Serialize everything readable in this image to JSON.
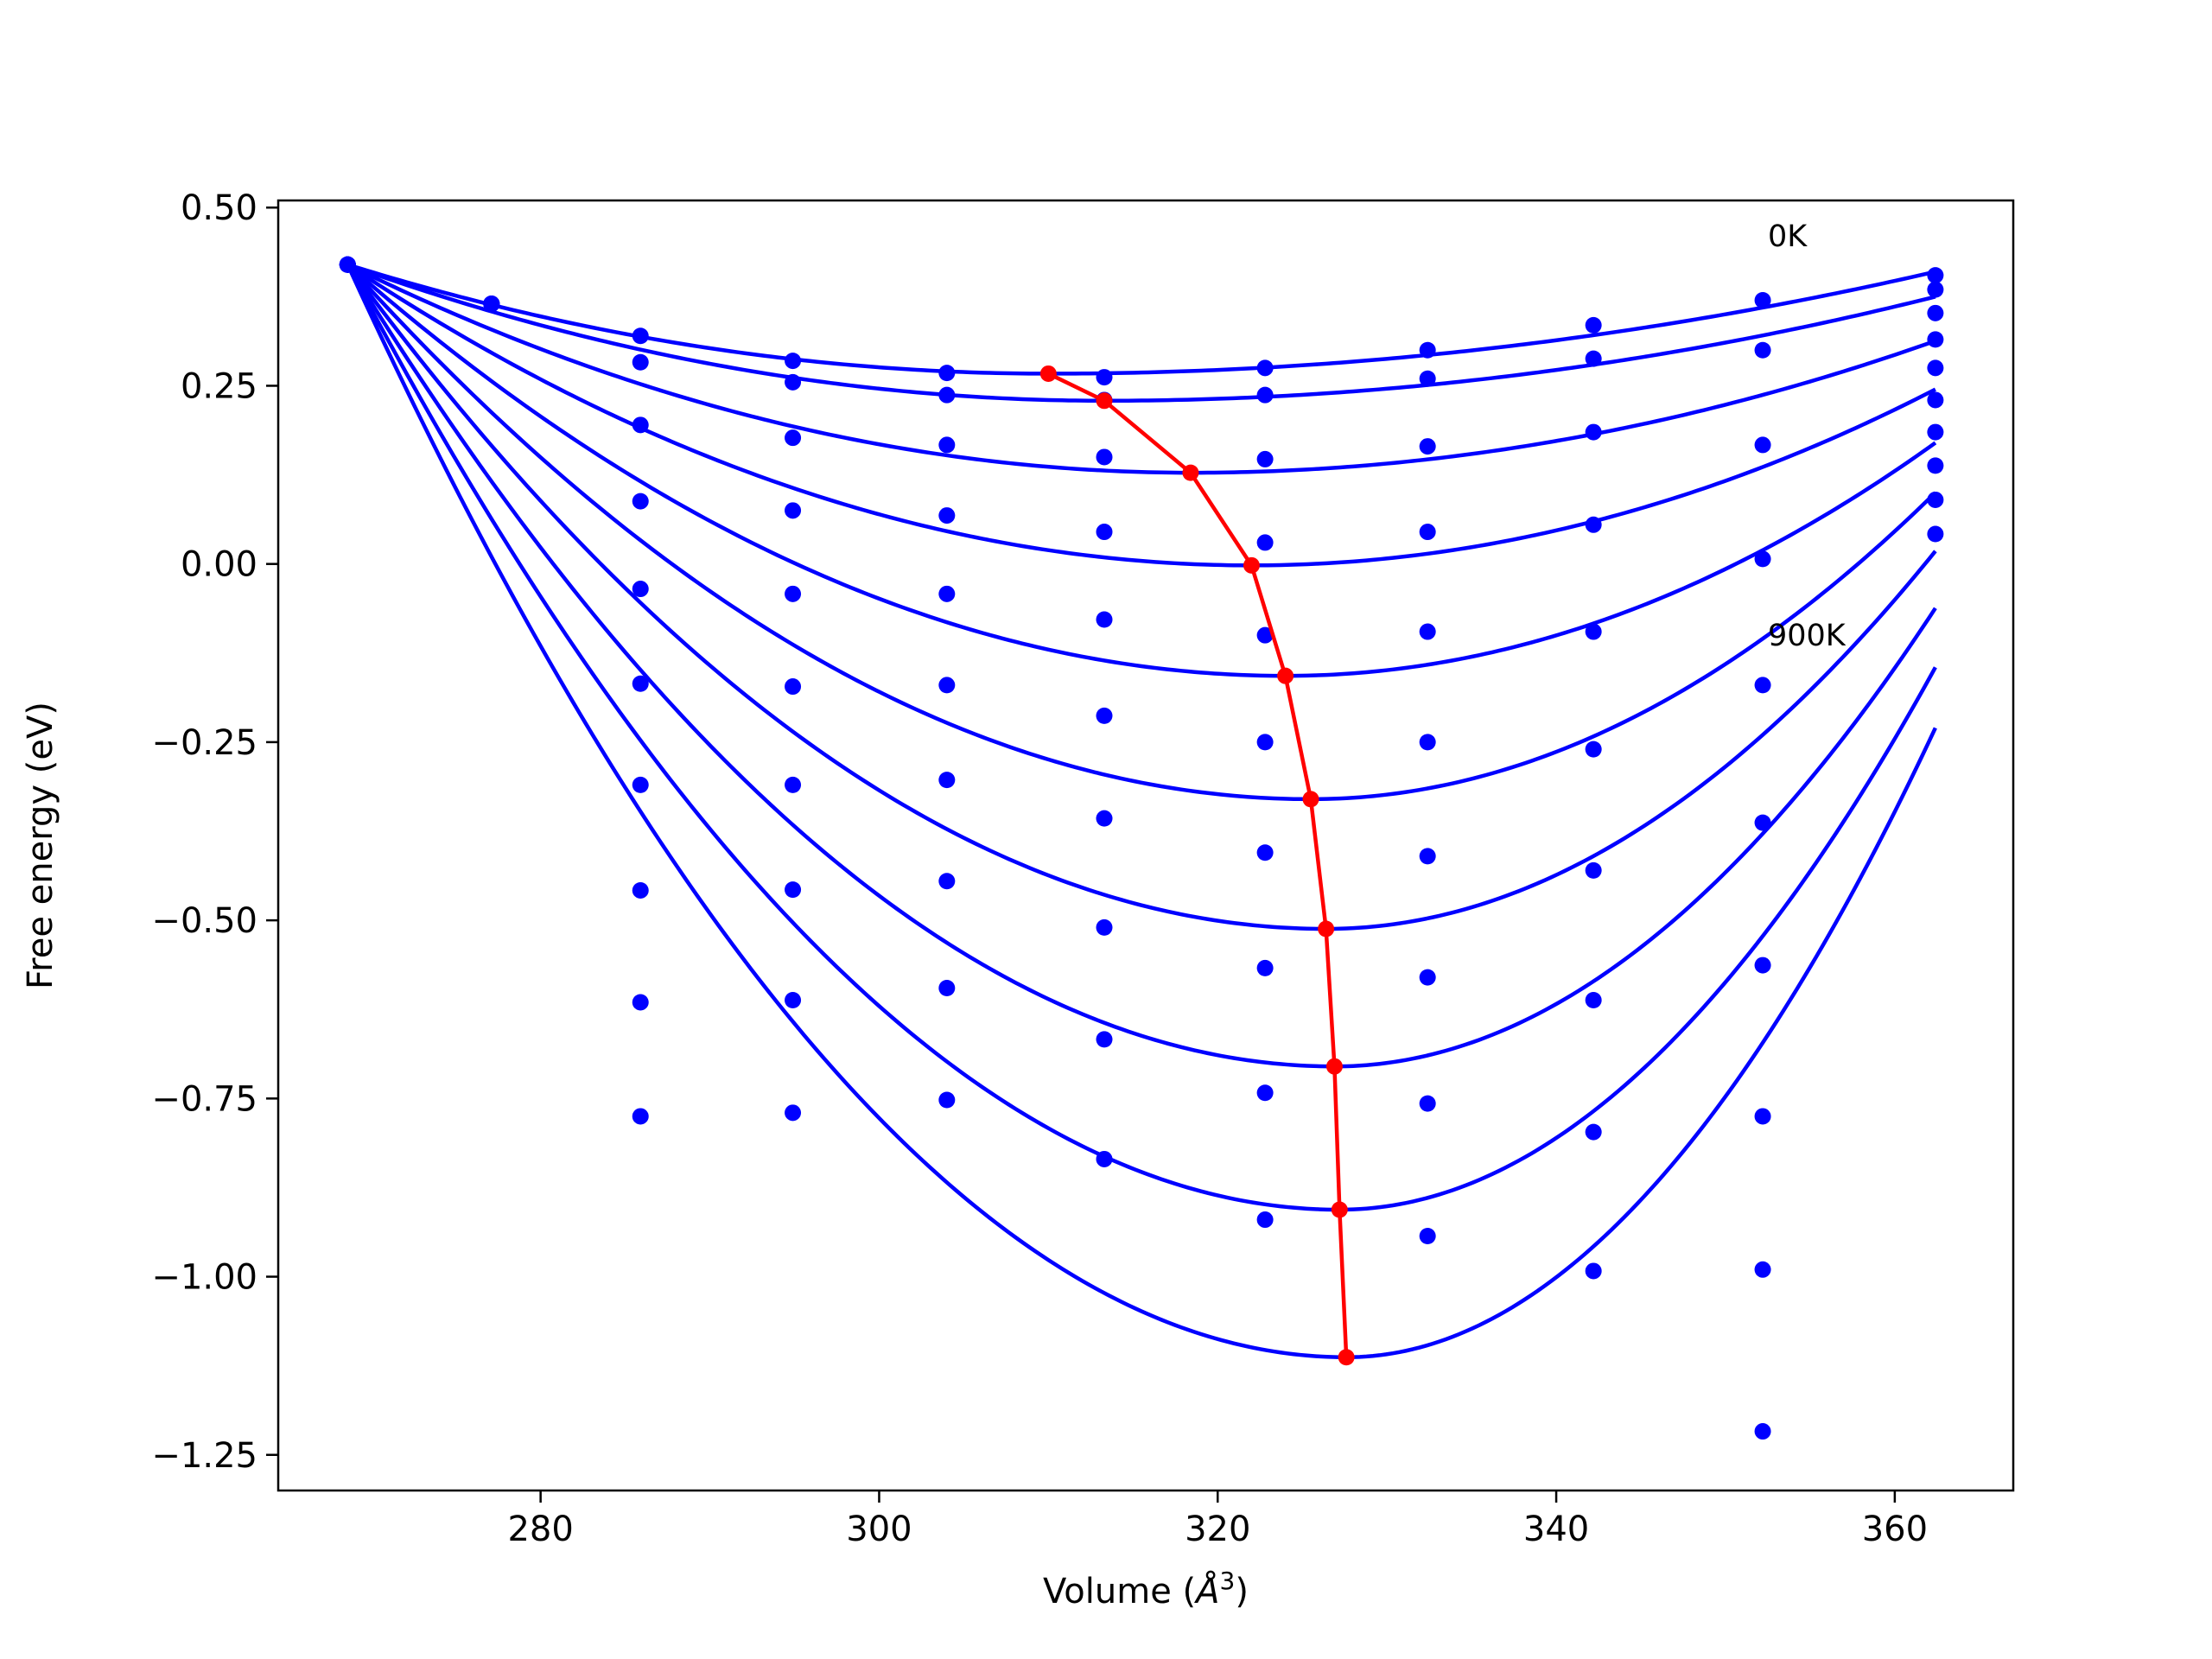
{
  "chart_data": {
    "type": "scatter",
    "title": "",
    "xlabel_main": "Volume (",
    "xlabel_symbol": "Å",
    "xlabel_exponent": "3",
    "xlabel_close": ")",
    "ylabel": "Free energy (eV)",
    "xlim": [
      264.5,
      367
    ],
    "ylim": [
      -1.3,
      0.51
    ],
    "xticks": [
      280,
      300,
      320,
      340,
      360
    ],
    "xtick_labels": [
      "280",
      "300",
      "320",
      "340",
      "360"
    ],
    "yticks": [
      0.5,
      0.25,
      0.0,
      -0.25,
      -0.5,
      -0.75,
      -1.0,
      -1.25
    ],
    "ytick_labels": [
      "0.50",
      "0.25",
      "0.00",
      "−0.25",
      "−0.50",
      "−0.75",
      "−1.00",
      "−1.25"
    ],
    "annotations": [
      {
        "text": "0K",
        "x": 352.5,
        "y": 0.46
      },
      {
        "text": "900K",
        "x": 352.5,
        "y": -0.1
      }
    ],
    "colors": {
      "points": "#0000ff",
      "fit_curves": "#0000ff",
      "minimum_path": "#ff0000"
    },
    "x_data": [
      268.6,
      277.1,
      285.9,
      294.9,
      304.0,
      313.3,
      322.8,
      332.4,
      342.2,
      352.2,
      362.4
    ],
    "point_series": [
      {
        "y": [
          0.42,
          0.365,
          0.32,
          0.285,
          0.268,
          0.262,
          0.275,
          0.3,
          0.335,
          0.37,
          0.405
        ]
      },
      {
        "y": [
          0.42,
          0.365,
          0.283,
          0.255,
          0.237,
          0.23,
          0.237,
          0.26,
          0.288,
          0.3,
          0.385
        ]
      },
      {
        "y": [
          0.42,
          0.365,
          0.195,
          0.177,
          0.167,
          0.15,
          0.147,
          0.165,
          0.185,
          0.167,
          0.352
        ]
      },
      {
        "y": [
          0.42,
          0.365,
          0.088,
          0.075,
          0.068,
          0.045,
          0.03,
          0.045,
          0.055,
          0.007,
          0.315
        ]
      },
      {
        "y": [
          0.42,
          0.365,
          -0.035,
          -0.042,
          -0.042,
          -0.078,
          -0.1,
          -0.095,
          -0.095,
          -0.17,
          0.275
        ]
      },
      {
        "y": [
          0.42,
          0.365,
          -0.168,
          -0.172,
          -0.17,
          -0.213,
          -0.25,
          -0.25,
          -0.26,
          -0.363,
          0.23
        ]
      },
      {
        "y": [
          0.42,
          0.365,
          -0.31,
          -0.31,
          -0.303,
          -0.357,
          -0.405,
          -0.41,
          -0.43,
          -0.563,
          0.185
        ]
      },
      {
        "y": [
          0.42,
          0.365,
          -0.458,
          -0.457,
          -0.445,
          -0.51,
          -0.567,
          -0.58,
          -0.612,
          -0.775,
          0.138
        ]
      },
      {
        "y": [
          0.42,
          0.365,
          -0.615,
          -0.612,
          -0.595,
          -0.667,
          -0.742,
          -0.757,
          -0.797,
          -0.99,
          0.09
        ]
      },
      {
        "y": [
          0.42,
          0.365,
          -0.775,
          -0.77,
          -0.752,
          -0.835,
          -0.92,
          -0.943,
          -0.992,
          -1.217,
          0.042
        ]
      }
    ],
    "fit_curves": [
      {
        "v0": 310.0,
        "e0": 0.267,
        "y_end": 0.41
      },
      {
        "v0": 313.3,
        "e0": 0.229,
        "y_end": 0.375
      },
      {
        "v0": 318.4,
        "e0": 0.128,
        "y_end": 0.313
      },
      {
        "v0": 322.0,
        "e0": -0.002,
        "y_end": 0.245
      },
      {
        "v0": 324.0,
        "e0": -0.157,
        "y_end": 0.17
      },
      {
        "v0": 325.5,
        "e0": -0.33,
        "y_end": 0.1
      },
      {
        "v0": 326.4,
        "e0": -0.512,
        "y_end": 0.018
      },
      {
        "v0": 326.9,
        "e0": -0.705,
        "y_end": -0.062
      },
      {
        "v0": 327.2,
        "e0": -0.906,
        "y_end": -0.145
      },
      {
        "v0": 327.6,
        "e0": -1.113,
        "y_end": -0.23
      }
    ],
    "fit_start": {
      "x": 268.6,
      "y": 0.42
    },
    "minimum_path": {
      "x": [
        310.0,
        313.3,
        318.4,
        322.0,
        324.0,
        325.5,
        326.4,
        326.9,
        327.2,
        327.6
      ],
      "y": [
        0.267,
        0.229,
        0.128,
        -0.002,
        -0.157,
        -0.33,
        -0.512,
        -0.705,
        -0.906,
        -1.113
      ]
    }
  }
}
